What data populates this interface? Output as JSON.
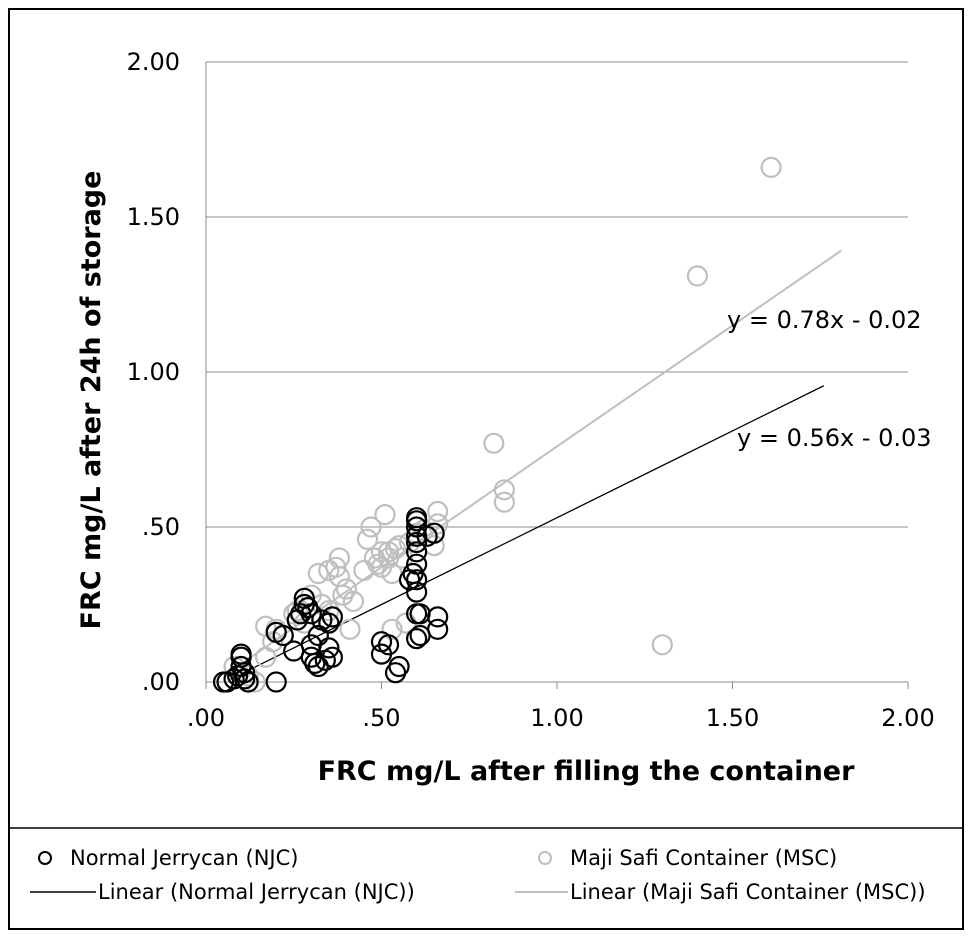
{
  "chart_data": {
    "type": "scatter",
    "xlabel": "FRC mg/L after filling the container",
    "ylabel": "FRC mg/L after 24h of storage",
    "xlim": [
      0,
      2
    ],
    "ylim": [
      0,
      2
    ],
    "x_ticks": [
      ".00",
      ".50",
      "1.00",
      "1.50",
      "2.00"
    ],
    "y_ticks": [
      ".00",
      ".50",
      "1.00",
      "1.50",
      "2.00"
    ],
    "grid": "horizontal",
    "legend_placement": "bottom",
    "series": [
      {
        "name": "Normal Jerrycan (NJC)",
        "color": "#000000",
        "marker": "open-circle",
        "points": [
          [
            0.05,
            0.0
          ],
          [
            0.06,
            0.0
          ],
          [
            0.08,
            0.01
          ],
          [
            0.09,
            0.02
          ],
          [
            0.1,
            0.05
          ],
          [
            0.1,
            0.08
          ],
          [
            0.1,
            0.09
          ],
          [
            0.11,
            0.03
          ],
          [
            0.11,
            0.01
          ],
          [
            0.12,
            0.0
          ],
          [
            0.2,
            0.0
          ],
          [
            0.2,
            0.16
          ],
          [
            0.22,
            0.15
          ],
          [
            0.25,
            0.1
          ],
          [
            0.26,
            0.2
          ],
          [
            0.27,
            0.22
          ],
          [
            0.28,
            0.25
          ],
          [
            0.28,
            0.27
          ],
          [
            0.29,
            0.24
          ],
          [
            0.3,
            0.22
          ],
          [
            0.3,
            0.12
          ],
          [
            0.3,
            0.08
          ],
          [
            0.31,
            0.06
          ],
          [
            0.32,
            0.05
          ],
          [
            0.32,
            0.15
          ],
          [
            0.33,
            0.2
          ],
          [
            0.34,
            0.07
          ],
          [
            0.35,
            0.11
          ],
          [
            0.35,
            0.19
          ],
          [
            0.36,
            0.21
          ],
          [
            0.36,
            0.08
          ],
          [
            0.5,
            0.13
          ],
          [
            0.5,
            0.09
          ],
          [
            0.52,
            0.12
          ],
          [
            0.54,
            0.03
          ],
          [
            0.55,
            0.05
          ],
          [
            0.58,
            0.33
          ],
          [
            0.59,
            0.35
          ],
          [
            0.6,
            0.38
          ],
          [
            0.6,
            0.42
          ],
          [
            0.6,
            0.45
          ],
          [
            0.6,
            0.47
          ],
          [
            0.6,
            0.5
          ],
          [
            0.6,
            0.52
          ],
          [
            0.6,
            0.53
          ],
          [
            0.6,
            0.33
          ],
          [
            0.6,
            0.29
          ],
          [
            0.6,
            0.22
          ],
          [
            0.6,
            0.14
          ],
          [
            0.61,
            0.15
          ],
          [
            0.61,
            0.22
          ],
          [
            0.63,
            0.47
          ],
          [
            0.65,
            0.48
          ],
          [
            0.66,
            0.21
          ],
          [
            0.66,
            0.17
          ]
        ],
        "trendline": {
          "name": "Linear (Normal Jerrycan (NJC))",
          "slope": 0.56,
          "intercept": -0.03,
          "x_range": [
            0.07,
            1.76
          ],
          "equation": "y = 0.56x - 0.03"
        }
      },
      {
        "name": "Maji Safi Container (MSC)",
        "color": "#BFBFBF",
        "marker": "open-circle",
        "points": [
          [
            0.08,
            0.05
          ],
          [
            0.1,
            0.08
          ],
          [
            0.12,
            0.02
          ],
          [
            0.14,
            0.0
          ],
          [
            0.17,
            0.18
          ],
          [
            0.17,
            0.08
          ],
          [
            0.19,
            0.13
          ],
          [
            0.2,
            0.17
          ],
          [
            0.22,
            0.15
          ],
          [
            0.25,
            0.22
          ],
          [
            0.26,
            0.23
          ],
          [
            0.28,
            0.19
          ],
          [
            0.3,
            0.28
          ],
          [
            0.32,
            0.35
          ],
          [
            0.33,
            0.25
          ],
          [
            0.35,
            0.23
          ],
          [
            0.35,
            0.36
          ],
          [
            0.37,
            0.37
          ],
          [
            0.38,
            0.4
          ],
          [
            0.38,
            0.34
          ],
          [
            0.39,
            0.28
          ],
          [
            0.4,
            0.3
          ],
          [
            0.41,
            0.17
          ],
          [
            0.42,
            0.26
          ],
          [
            0.45,
            0.36
          ],
          [
            0.46,
            0.46
          ],
          [
            0.47,
            0.5
          ],
          [
            0.48,
            0.4
          ],
          [
            0.49,
            0.38
          ],
          [
            0.5,
            0.37
          ],
          [
            0.5,
            0.42
          ],
          [
            0.51,
            0.54
          ],
          [
            0.52,
            0.4
          ],
          [
            0.52,
            0.42
          ],
          [
            0.53,
            0.35
          ],
          [
            0.53,
            0.17
          ],
          [
            0.54,
            0.43
          ],
          [
            0.55,
            0.44
          ],
          [
            0.56,
            0.4
          ],
          [
            0.57,
            0.19
          ],
          [
            0.58,
            0.45
          ],
          [
            0.6,
            0.48
          ],
          [
            0.62,
            0.49
          ],
          [
            0.65,
            0.44
          ],
          [
            0.65,
            0.48
          ],
          [
            0.66,
            0.51
          ],
          [
            0.66,
            0.55
          ],
          [
            0.82,
            0.77
          ],
          [
            0.85,
            0.62
          ],
          [
            0.85,
            0.58
          ],
          [
            1.3,
            0.12
          ],
          [
            1.4,
            1.31
          ],
          [
            1.61,
            1.66
          ]
        ],
        "trendline": {
          "name": "Linear (Maji Safi Container (MSC))",
          "slope": 0.78,
          "intercept": -0.02,
          "x_range": [
            0.07,
            1.81
          ],
          "equation": "y = 0.78x - 0.02"
        }
      }
    ]
  },
  "legend": {
    "items": [
      {
        "label": "Normal Jerrycan (NJC)"
      },
      {
        "label": "Maji Safi Container (MSC)"
      },
      {
        "label": "Linear (Normal Jerrycan (NJC))"
      },
      {
        "label": "Linear (Maji Safi Container (MSC))"
      }
    ]
  }
}
